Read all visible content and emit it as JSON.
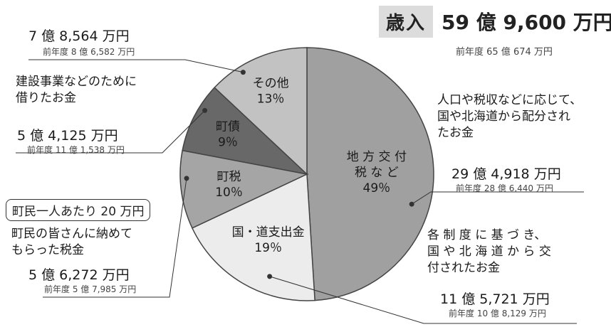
{
  "title": {
    "label": "歳入",
    "total": "59 億 9,600 万円",
    "previous": "前年度 65 億 674 万円"
  },
  "chart_data": {
    "type": "pie",
    "unit": "%",
    "slices": [
      {
        "key": "chiho",
        "label_lines": [
          "地 方 交 付",
          "税 な ど"
        ],
        "pct_text": "49％",
        "value": 49,
        "color": "#a0a0a0",
        "amount": "29 億 4,918 万円",
        "previous": "前年度 28 億 6,440 万円",
        "description": [
          "人口や税収などに応じて、",
          "国や北海道から配分され",
          "たお金"
        ]
      },
      {
        "key": "kokudo",
        "label_lines": [
          "国・道支出金"
        ],
        "pct_text": "19％",
        "value": 19,
        "color": "#ececec",
        "amount": "11 億 5,721 万円",
        "previous": "前年度 10 億 8,129 万円",
        "description": [
          "各 制 度 に 基 づ き、",
          "国 や 北 海 道 か ら 交",
          "付されたお金"
        ]
      },
      {
        "key": "chozei",
        "label_lines": [
          "町税"
        ],
        "pct_text": "10％",
        "value": 10,
        "color": "#a5a5a5",
        "amount": "5 億 6,272 万円",
        "previous": "前年度 5 億 7,985 万円",
        "description": [
          "町民の皆さんに納めて",
          "もらった税金"
        ],
        "per_person": "町民一人あたり 20 万円"
      },
      {
        "key": "chosai",
        "label_lines": [
          "町債"
        ],
        "pct_text": "9％",
        "value": 9,
        "color": "#686868",
        "amount": "5 億 4,125 万円",
        "previous": "前年度 11 億 1,538 万円",
        "description": [
          "建設事業などのために",
          "借りたお金"
        ]
      },
      {
        "key": "sonota",
        "label_lines": [
          "その他"
        ],
        "pct_text": "13％",
        "value": 13,
        "color": "#c2c2c2",
        "amount": "7 億 8,564 万円",
        "previous": "前年度 8 億 6,582 万円",
        "description": []
      }
    ]
  }
}
